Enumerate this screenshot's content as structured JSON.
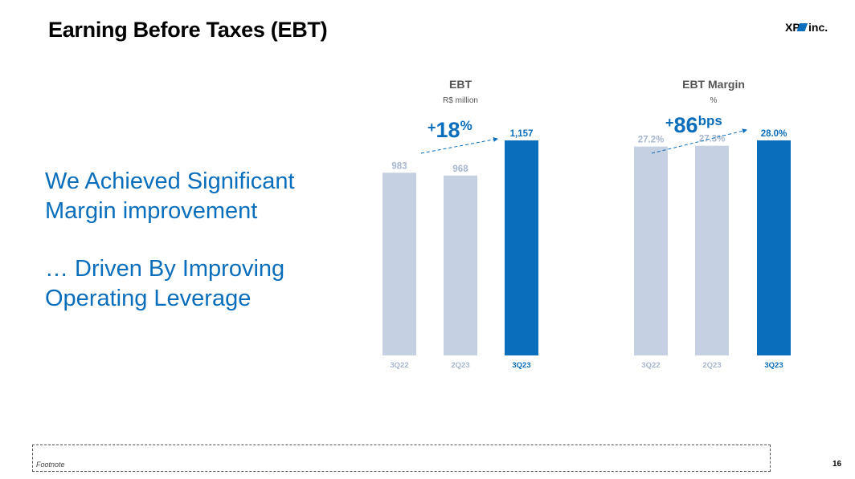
{
  "slide": {
    "title": "Earning Before Taxes (EBT)",
    "headline_lines": [
      "We Achieved Significant",
      "Margin improvement",
      "… Driven By Improving",
      "Operating Leverage"
    ],
    "footnote": "Footnote",
    "page_number": "16",
    "logo": {
      "left": "XP",
      "right": "inc."
    }
  },
  "colors": {
    "accent": "#0a6ebd",
    "bar_light": "#c5d0e2",
    "label_light": "#a7b6cf",
    "title_gray": "#555555"
  },
  "chart_data": [
    {
      "type": "bar",
      "title": "EBT",
      "subtitle": "R$ million",
      "categories": [
        "3Q22",
        "2Q23",
        "3Q23"
      ],
      "values": [
        983,
        968,
        1157
      ],
      "value_labels": [
        "983",
        "968",
        "1,157"
      ],
      "highlight_index": 2,
      "ylim": [
        0,
        1157
      ],
      "annotation": {
        "sign": "+",
        "value": "18",
        "unit": "%"
      }
    },
    {
      "type": "bar",
      "title": "EBT Margin",
      "subtitle": "%",
      "categories": [
        "3Q22",
        "2Q23",
        "3Q23"
      ],
      "values": [
        27.2,
        27.3,
        28.0
      ],
      "value_labels": [
        "27.2%",
        "27.3%",
        "28.0%"
      ],
      "highlight_index": 2,
      "ylim": [
        0,
        28.0
      ],
      "annotation": {
        "sign": "+",
        "value": "86",
        "unit": "bps"
      }
    }
  ]
}
